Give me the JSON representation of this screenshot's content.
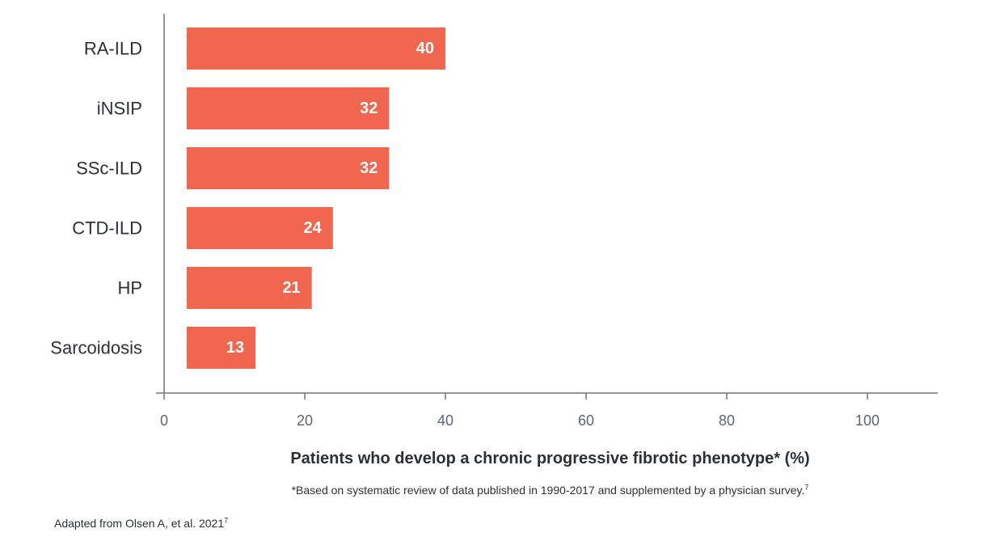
{
  "chart_data": {
    "type": "bar",
    "orientation": "horizontal",
    "categories": [
      "RA-ILD",
      "iNSIP",
      "SSc-ILD",
      "CTD-ILD",
      "HP",
      "Sarcoidosis"
    ],
    "values": [
      40,
      32,
      32,
      24,
      21,
      13
    ],
    "data_labels": [
      "40",
      "32",
      "32",
      "24",
      "21",
      "13"
    ],
    "xlim": [
      0,
      110
    ],
    "x_ticks": [
      0,
      20,
      40,
      60,
      80,
      100
    ],
    "x_tick_labels": [
      "0",
      "20",
      "40",
      "60",
      "80",
      "100"
    ],
    "xlabel": "Patients who develop a chronic progressive fibrotic phenotype* (%)",
    "ylabel": "",
    "grid": false,
    "bar_color": "#f1664f"
  },
  "footnote": {
    "text": "*Based on systematic review of data published in 1990-2017 and supplemented by a physician survey.",
    "sup": "7"
  },
  "source": {
    "text": "Adapted from Olsen A, et al. 2021",
    "sup": "7"
  }
}
